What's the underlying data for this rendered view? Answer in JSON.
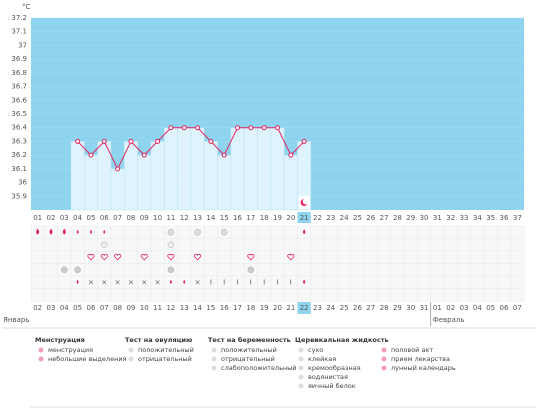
{
  "chart_data": {
    "type": "line",
    "unit": "°C",
    "categories": [
      "01",
      "02",
      "03",
      "04",
      "05",
      "06",
      "07",
      "08",
      "09",
      "10",
      "11",
      "12",
      "13",
      "14",
      "15",
      "16",
      "17",
      "18",
      "19",
      "20",
      "21",
      "22",
      "23",
      "24",
      "25",
      "26",
      "27",
      "28",
      "29",
      "30",
      "31",
      "32",
      "33",
      "34",
      "35",
      "36",
      "37"
    ],
    "values": [
      null,
      null,
      null,
      36.3,
      36.2,
      36.3,
      36.1,
      36.3,
      36.2,
      36.3,
      36.4,
      36.4,
      36.4,
      36.3,
      36.2,
      36.4,
      36.4,
      36.4,
      36.4,
      36.2,
      36.3,
      null,
      null,
      null,
      null,
      null,
      null,
      null,
      null,
      null,
      null,
      null,
      null,
      null,
      null,
      null,
      null
    ],
    "ylim": [
      35.8,
      37.2
    ],
    "yticks": [
      35.9,
      36,
      36.1,
      36.2,
      36.3,
      36.4,
      36.5,
      36.6,
      36.7,
      36.8,
      36.9,
      37,
      37.1,
      37.2
    ],
    "color": "#e0245e",
    "background_color": "#8fd4ef",
    "area_color": "#def3fc",
    "current_day": 20,
    "dates": [
      "02",
      "03",
      "04",
      "05",
      "06",
      "07",
      "08",
      "09",
      "10",
      "11",
      "12",
      "13",
      "14",
      "15",
      "16",
      "17",
      "18",
      "19",
      "20",
      "21",
      "22",
      "23",
      "24",
      "25",
      "26",
      "27",
      "28",
      "29",
      "30",
      "31",
      "01",
      "02",
      "03",
      "04",
      "05",
      "06",
      "07"
    ],
    "red_dates": [
      5,
      6,
      12,
      13,
      19,
      20,
      26,
      27,
      33,
      34
    ],
    "months": [
      "Январь",
      "Февраль"
    ],
    "legend": [
      {
        "title": "Менструация",
        "items": [
          "менструация",
          "небольшие выделения"
        ]
      },
      {
        "title": "Тест на овуляцию",
        "items": [
          "положительный",
          "отрицательный"
        ]
      },
      {
        "title": "Тест на беременность",
        "items": [
          "положительный",
          "отрицательный",
          "слабоположительный"
        ]
      },
      {
        "title": "Цервикальная жидкость",
        "items": [
          "сухо",
          "клейкая",
          "кремообразная",
          "водянистая",
          "яичный белок"
        ]
      },
      {
        "items": [
          "половой акт",
          "прием лекарства",
          "лунный календарь"
        ]
      }
    ]
  }
}
